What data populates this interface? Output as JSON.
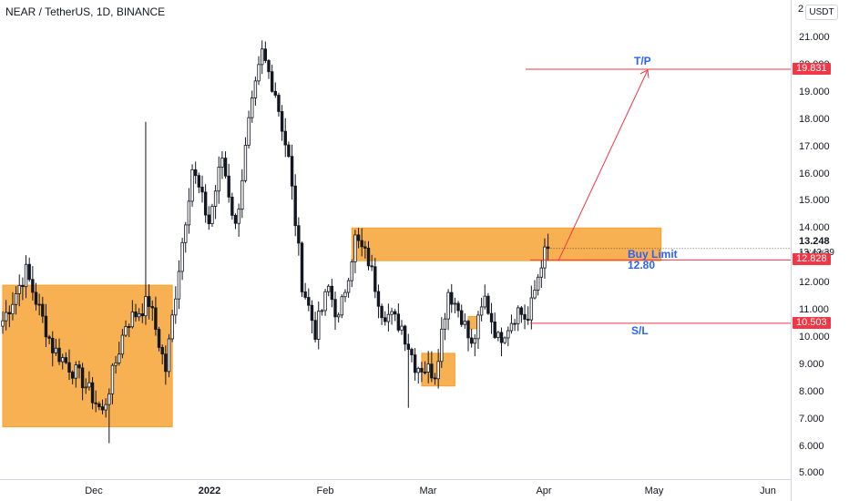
{
  "header": {
    "title": "NEAR / TetherUS, 1D, BINANCE",
    "currency_button": "USDT"
  },
  "price_axis": {
    "top_cut_label": "2",
    "ticks": [
      "21.000",
      "20.000",
      "19.000",
      "18.000",
      "17.000",
      "16.000",
      "15.000",
      "14.000",
      "13.000",
      "12.000",
      "11.000",
      "10.000",
      "9.000",
      "8.000",
      "7.000",
      "6.000",
      "5.000"
    ],
    "last_price": "13.248",
    "countdown": "13:43:39",
    "buy_badge": "12.828",
    "tp_badge": "19.831",
    "sl_badge": "10.503"
  },
  "time_axis": {
    "labels": [
      "Dec",
      "2022",
      "Feb",
      "Mar",
      "Apr",
      "May",
      "Jun"
    ],
    "bold_label": "2022"
  },
  "annotations": {
    "tp": "T/P",
    "buy_limit": "Buy Limit",
    "buy_value": "12.80",
    "sl": "S/L"
  },
  "colors": {
    "up_body": "#ffffff",
    "down_body": "#131722",
    "wick": "#131722",
    "zone": "#f7a02c",
    "line": "#f23645",
    "annotation_text": "#2962ff",
    "price_badge": "#f23645"
  },
  "chart_data": {
    "type": "candlestick",
    "title": "NEAR / TetherUS, 1D, BINANCE",
    "ylim": [
      4.6,
      22.6
    ],
    "y_ticks": [
      21,
      20,
      19,
      18,
      17,
      16,
      15,
      14,
      13,
      12,
      11,
      10,
      9,
      8,
      7,
      6,
      5
    ],
    "x_labels": [
      "Dec",
      "2022",
      "Feb",
      "Mar",
      "Apr",
      "May",
      "Jun"
    ],
    "waypoints": [
      {
        "day": 0,
        "close": 10.6
      },
      {
        "day": 7,
        "close": 12.4
      },
      {
        "day": 15,
        "close": 9.6
      },
      {
        "day": 24,
        "close": 8.4
      },
      {
        "day": 30,
        "close": 7.2
      },
      {
        "day": 37,
        "close": 10.5
      },
      {
        "day": 44,
        "close": 11.3
      },
      {
        "day": 49,
        "close": 8.8
      },
      {
        "day": 53,
        "close": 12.6
      },
      {
        "day": 57,
        "close": 16.2
      },
      {
        "day": 62,
        "close": 14.2
      },
      {
        "day": 66,
        "close": 16.6
      },
      {
        "day": 70,
        "close": 14.0
      },
      {
        "day": 74,
        "close": 17.8
      },
      {
        "day": 78,
        "close": 20.4
      },
      {
        "day": 82,
        "close": 19.0
      },
      {
        "day": 86,
        "close": 16.5
      },
      {
        "day": 90,
        "close": 12.0
      },
      {
        "day": 94,
        "close": 10.2
      },
      {
        "day": 98,
        "close": 11.8
      },
      {
        "day": 101,
        "close": 10.6
      },
      {
        "day": 106,
        "close": 13.6
      },
      {
        "day": 110,
        "close": 12.8
      },
      {
        "day": 114,
        "close": 11.0
      },
      {
        "day": 120,
        "close": 10.4
      },
      {
        "day": 124,
        "close": 9.0
      },
      {
        "day": 130,
        "close": 8.7
      },
      {
        "day": 134,
        "close": 11.7
      },
      {
        "day": 138,
        "close": 10.8
      },
      {
        "day": 141,
        "close": 9.6
      },
      {
        "day": 145,
        "close": 11.4
      },
      {
        "day": 149,
        "close": 9.9
      },
      {
        "day": 155,
        "close": 11.0
      },
      {
        "day": 158,
        "close": 10.6
      },
      {
        "day": 162,
        "close": 12.8
      },
      {
        "day": 164,
        "close": 13.25
      }
    ],
    "zones": [
      {
        "from_day": 0,
        "to_day": 51,
        "low": 6.7,
        "high": 11.9
      },
      {
        "from_day": 105,
        "to_day": 198,
        "low": 12.8,
        "high": 14.0
      },
      {
        "from_day": 126,
        "to_day": 136,
        "low": 8.2,
        "high": 9.4
      },
      {
        "from_day": 140,
        "to_day": 143,
        "low": 10.3,
        "high": 10.75
      }
    ],
    "levels": {
      "take_profit": 19.831,
      "buy_limit": 12.828,
      "stop_loss": 10.503
    },
    "target_arrow": {
      "from_price": 12.8,
      "to_price": 19.8
    },
    "last_price": 13.248
  }
}
